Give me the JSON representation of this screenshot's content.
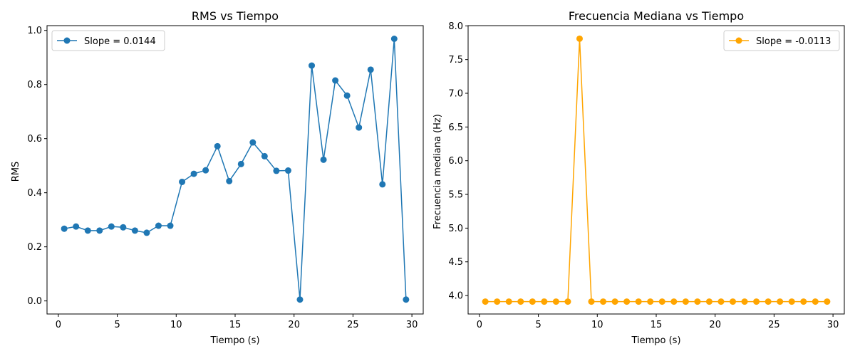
{
  "chart_data": [
    {
      "type": "line",
      "title": "RMS vs Tiempo",
      "xlabel": "Tiempo (s)",
      "ylabel": "RMS",
      "xlim": [
        -0.96,
        30.96
      ],
      "ylim": [
        -0.0483,
        1.0177
      ],
      "xticks": [
        0,
        5,
        10,
        15,
        20,
        25,
        30
      ],
      "yticks": [
        0.0,
        0.2,
        0.4,
        0.6,
        0.8,
        1.0
      ],
      "ytick_labels": [
        "0.0",
        "0.2",
        "0.4",
        "0.6",
        "0.8",
        "1.0"
      ],
      "grid": false,
      "legend_position": "top-left",
      "series": [
        {
          "name": "Slope = 0.0144",
          "color": "#1f77b4",
          "marker": "circle",
          "x": [
            0.5,
            1.5,
            2.5,
            3.5,
            4.5,
            5.5,
            6.5,
            7.5,
            8.5,
            9.5,
            10.5,
            11.5,
            12.5,
            13.5,
            14.5,
            15.5,
            16.5,
            17.5,
            18.5,
            19.5,
            20.5,
            21.5,
            22.5,
            23.5,
            24.5,
            25.5,
            26.5,
            27.5,
            28.5,
            29.5
          ],
          "y": [
            0.267,
            0.275,
            0.26,
            0.26,
            0.275,
            0.272,
            0.26,
            0.252,
            0.278,
            0.278,
            0.44,
            0.47,
            0.483,
            0.572,
            0.443,
            0.506,
            0.586,
            0.535,
            0.481,
            0.482,
            0.005,
            0.87,
            0.522,
            0.815,
            0.759,
            0.641,
            0.855,
            0.431,
            0.969,
            0.005
          ]
        }
      ]
    },
    {
      "type": "line",
      "title": "Frecuencia Mediana vs Tiempo",
      "xlabel": "Tiempo (s)",
      "ylabel": "Frecuencia mediana (Hz)",
      "xlim": [
        -0.96,
        30.96
      ],
      "ylim": [
        3.7262,
        8.0034
      ],
      "xticks": [
        0,
        5,
        10,
        15,
        20,
        25,
        30
      ],
      "yticks": [
        4.0,
        4.5,
        5.0,
        5.5,
        6.0,
        6.5,
        7.0,
        7.5,
        8.0
      ],
      "ytick_labels": [
        "4.0",
        "4.5",
        "5.0",
        "5.5",
        "6.0",
        "6.5",
        "7.0",
        "7.5",
        "8.0"
      ],
      "grid": false,
      "legend_position": "top-right",
      "series": [
        {
          "name": "Slope = -0.0113",
          "color": "#ffa500",
          "marker": "circle",
          "x": [
            0.5,
            1.5,
            2.5,
            3.5,
            4.5,
            5.5,
            6.5,
            7.5,
            8.5,
            9.5,
            10.5,
            11.5,
            12.5,
            13.5,
            14.5,
            15.5,
            16.5,
            17.5,
            18.5,
            19.5,
            20.5,
            21.5,
            22.5,
            23.5,
            24.5,
            25.5,
            26.5,
            27.5,
            28.5,
            29.5
          ],
          "y": [
            3.91,
            3.91,
            3.91,
            3.91,
            3.91,
            3.91,
            3.91,
            3.91,
            7.81,
            3.91,
            3.91,
            3.91,
            3.91,
            3.91,
            3.91,
            3.91,
            3.91,
            3.91,
            3.91,
            3.91,
            3.91,
            3.91,
            3.91,
            3.91,
            3.91,
            3.91,
            3.91,
            3.91,
            3.91,
            3.91
          ]
        }
      ]
    }
  ]
}
